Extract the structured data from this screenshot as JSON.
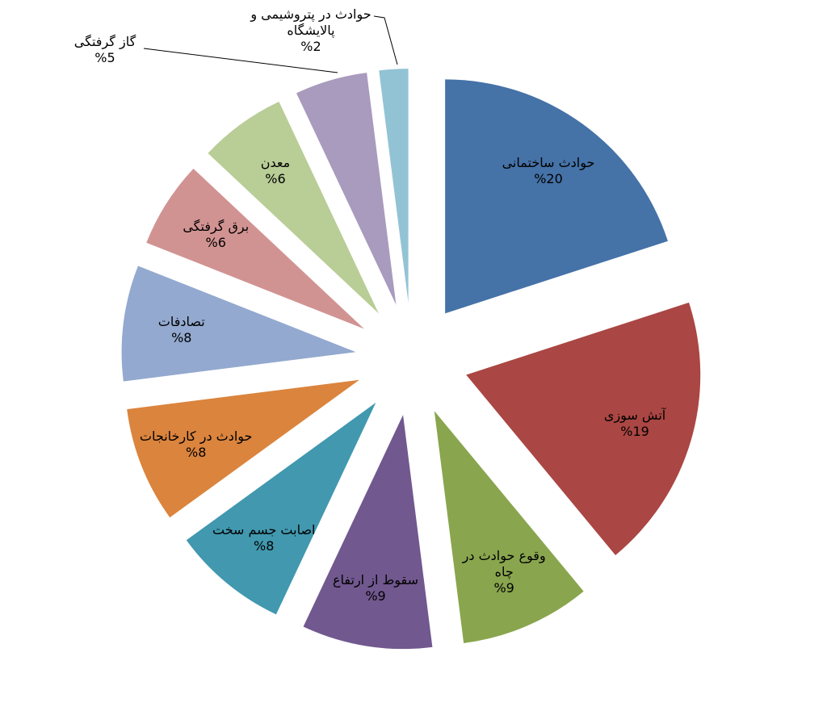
{
  "chart_data": {
    "type": "pie",
    "categories": [
      "حوادث ساختمانی",
      "آتش سوزی",
      "وقوع حوادث در چاه",
      "سقوط از ارتفاع",
      "اصابت جسم سخت",
      "حوادث در کارخانجات",
      "تصادفات",
      "برق گرفتگی",
      "معدن",
      "گاز گرفتگی",
      "حوادث در پتروشیمی و پالایشگاه"
    ],
    "values": [
      20,
      19,
      9,
      9,
      8,
      8,
      8,
      6,
      6,
      5,
      2
    ],
    "value_labels": [
      "%20",
      "%19",
      "%9",
      "%9",
      "%8",
      "%8",
      "%8",
      "%6",
      "%6",
      "%5",
      "%2"
    ],
    "colors": [
      "#4572a7",
      "#aa4643",
      "#89a54e",
      "#71588f",
      "#4198af",
      "#db843d",
      "#93a9cf",
      "#d19392",
      "#b9cd96",
      "#a99bbd",
      "#92c3d5"
    ]
  }
}
